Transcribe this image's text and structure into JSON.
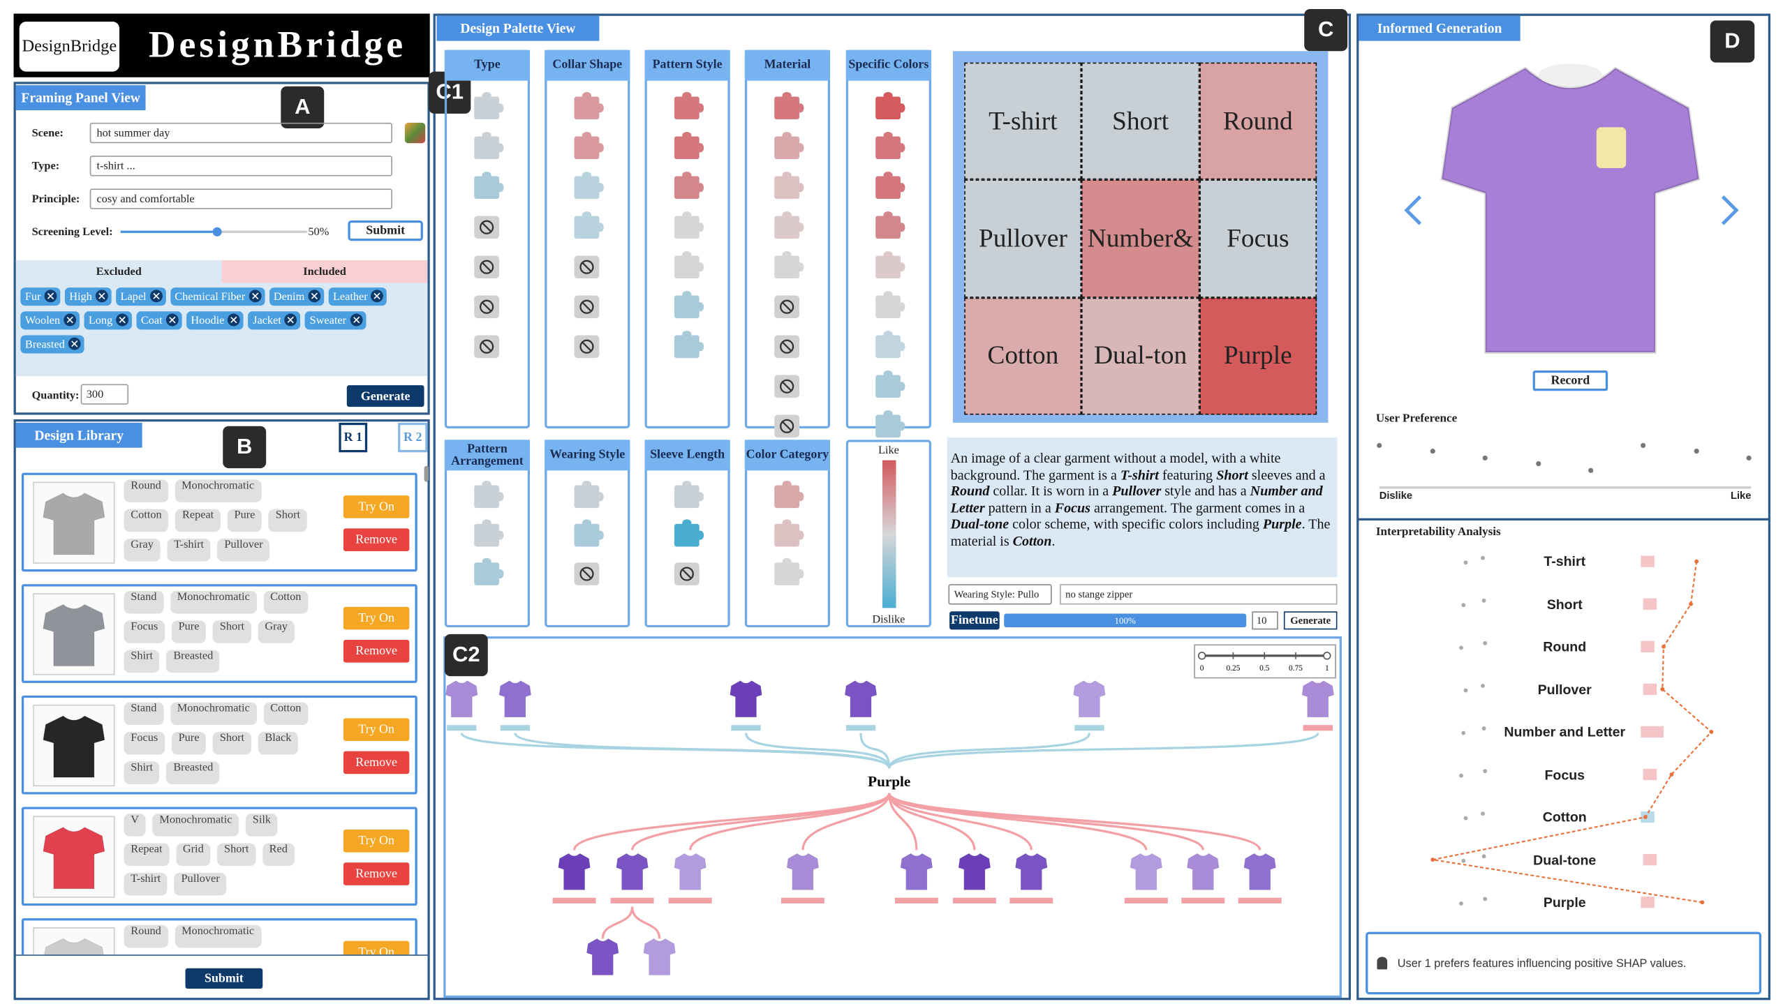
{
  "header": {
    "logo": "DesignBridge",
    "title": "DesignBridge"
  },
  "framing_panel": {
    "title": "Framing Panel View",
    "badge": "A",
    "fields": [
      {
        "label": "Scene:",
        "value": "hot summer day"
      },
      {
        "label": "Type:",
        "value": "t-shirt ..."
      },
      {
        "label": "Principle:",
        "value": "cosy and comfortable"
      }
    ],
    "screening_label": "Screening Level:",
    "screening_value": "50%",
    "submit": "Submit",
    "tabs": [
      "Excluded",
      "Included"
    ],
    "tags": [
      "Fur",
      "High",
      "Lapel",
      "Chemical Fiber",
      "Denim",
      "Leather",
      "Woolen",
      "Long",
      "Coat",
      "Hoodie",
      "Jacket",
      "Sweater",
      "Breasted"
    ],
    "quantity_label": "Quantity:",
    "quantity": "300",
    "generate": "Generate"
  },
  "design_library": {
    "title": "Design Library",
    "badge": "B",
    "rounds": [
      "R 1",
      "R 2"
    ],
    "try_on": "Try On",
    "remove": "Remove",
    "submit": "Submit",
    "items": [
      {
        "color": "#a9a9a9",
        "tags": [
          [
            "Round",
            "Monochromatic"
          ],
          [
            "Cotton",
            "Repeat",
            "Pure",
            "Short"
          ],
          [
            "Gray",
            "T-shirt",
            "Pullover"
          ]
        ]
      },
      {
        "color": "#8f949a",
        "tags": [
          [
            "Stand",
            "Monochromatic",
            "Cotton"
          ],
          [
            "Focus",
            "Pure",
            "Short",
            "Gray"
          ],
          [
            "Shirt",
            "Breasted"
          ]
        ]
      },
      {
        "color": "#262626",
        "tags": [
          [
            "Stand",
            "Monochromatic",
            "Cotton"
          ],
          [
            "Focus",
            "Pure",
            "Short",
            "Black"
          ],
          [
            "Shirt",
            "Breasted"
          ]
        ]
      },
      {
        "color": "#e2404f",
        "tags": [
          [
            "V",
            "Monochromatic",
            "Silk"
          ],
          [
            "Repeat",
            "Grid",
            "Short",
            "Red"
          ],
          [
            "T-shirt",
            "Pullover"
          ]
        ]
      },
      {
        "color": "#cccccc",
        "tags": [
          [
            "Round",
            "Monochromatic"
          ]
        ]
      }
    ]
  },
  "palette": {
    "title": "Design Palette View",
    "badge": "C",
    "sub_badge": "C1",
    "columns": [
      {
        "name": "Type",
        "pieces": [
          "#c9d1d6",
          "#c9d1d6",
          "#a9cad8",
          "ban",
          "ban",
          "ban",
          "ban"
        ]
      },
      {
        "name": "Collar Shape",
        "pieces": [
          "#d99a9d",
          "#d99a9d",
          "#b9d3de",
          "#b9d3de",
          "ban",
          "ban",
          "ban"
        ]
      },
      {
        "name": "Pattern Style",
        "pieces": [
          "#d4787d",
          "#d4787d",
          "#d4878b",
          "#d6d6d8",
          "#d6d6d8",
          "#a9cad8",
          "#a9cad8"
        ]
      },
      {
        "name": "Material",
        "pieces": [
          "#d4787d",
          "#d9a8aa",
          "#dcc0c2",
          "#dcc9ca",
          "#d6d6d8",
          "ban",
          "ban",
          "ban",
          "ban"
        ]
      },
      {
        "name": "Specific Colors",
        "pieces": [
          "#d45a5e",
          "#d4787d",
          "#d4787d",
          "#d4878b",
          "#dcc9ca",
          "#d6d6d8",
          "#c0d5de",
          "#a9cad8",
          "#a9cad8"
        ]
      },
      {
        "name": "Pattern Arrangement",
        "pieces": [
          "#c9d1d6",
          "#c9d1d6",
          "#a9cad8"
        ]
      },
      {
        "name": "Wearing Style",
        "pieces": [
          "#c9d1d6",
          "#a9cad8",
          "ban"
        ]
      },
      {
        "name": "Sleeve Length",
        "pieces": [
          "#c9d1d6",
          "#4aaed0",
          "ban"
        ]
      },
      {
        "name": "Color Category",
        "pieces": [
          "#d9a8aa",
          "#dcc0c2",
          "#d6d6d8"
        ]
      }
    ],
    "legend": {
      "top": "Like",
      "bottom": "Dislike"
    },
    "grid": [
      {
        "label": "T-shirt",
        "color": "#c9d0d5"
      },
      {
        "label": "Short",
        "color": "#c9d0d5"
      },
      {
        "label": "Round",
        "color": "#d9a3a4"
      },
      {
        "label": "Pullover",
        "color": "#c9d0d5"
      },
      {
        "label": "Number&",
        "color": "#d48c8e"
      },
      {
        "label": "Focus",
        "color": "#c9d0d5"
      },
      {
        "label": "Cotton",
        "color": "#d9abac"
      },
      {
        "label": "Dual-ton",
        "color": "#d8b7b8"
      },
      {
        "label": "Purple",
        "color": "#d45a5c"
      }
    ],
    "description": [
      "An image of a clear garment without a model, with a white background. The garment is a ",
      {
        "text": "T-shirt",
        "em": true
      },
      " featuring ",
      {
        "text": "Short",
        "em": true
      },
      " sleeves and a ",
      {
        "text": "Round",
        "em": true
      },
      " collar. It is worn in a ",
      {
        "text": "Pullover",
        "em": true
      },
      " style and has a ",
      {
        "text": "Number and Letter",
        "em": true
      },
      " pattern in a ",
      {
        "text": "Focus",
        "em": true
      },
      " arrangement. The garment comes in a ",
      {
        "text": "Dual-tone",
        "em": true
      },
      " color scheme, with specific colors including ",
      {
        "text": "Purple",
        "em": true
      },
      ". The material is ",
      {
        "text": "Cotton",
        "em": true
      },
      "."
    ],
    "style_select": "Wearing Style: Pullo",
    "prompt": "no stange zipper",
    "finetune": "Finetune",
    "progress": "100%",
    "count": "10",
    "generate": "Generate"
  },
  "tree": {
    "badge": "C2",
    "ticks": [
      0,
      0.25,
      0.5,
      0.75,
      1
    ],
    "root": "Purple"
  },
  "generation": {
    "title": "Informed Generation",
    "badge": "D",
    "record": "Record",
    "preference_title": "User Preference",
    "dislike": "Dislike",
    "like": "Like",
    "analysis_title": "Interpretability Analysis",
    "features": [
      "T-shirt",
      "Short",
      "Round",
      "Pullover",
      "Number and Letter",
      "Focus",
      "Cotton",
      "Dual-tone",
      "Purple"
    ],
    "note": "User 1 prefers features influencing positive SHAP values."
  }
}
